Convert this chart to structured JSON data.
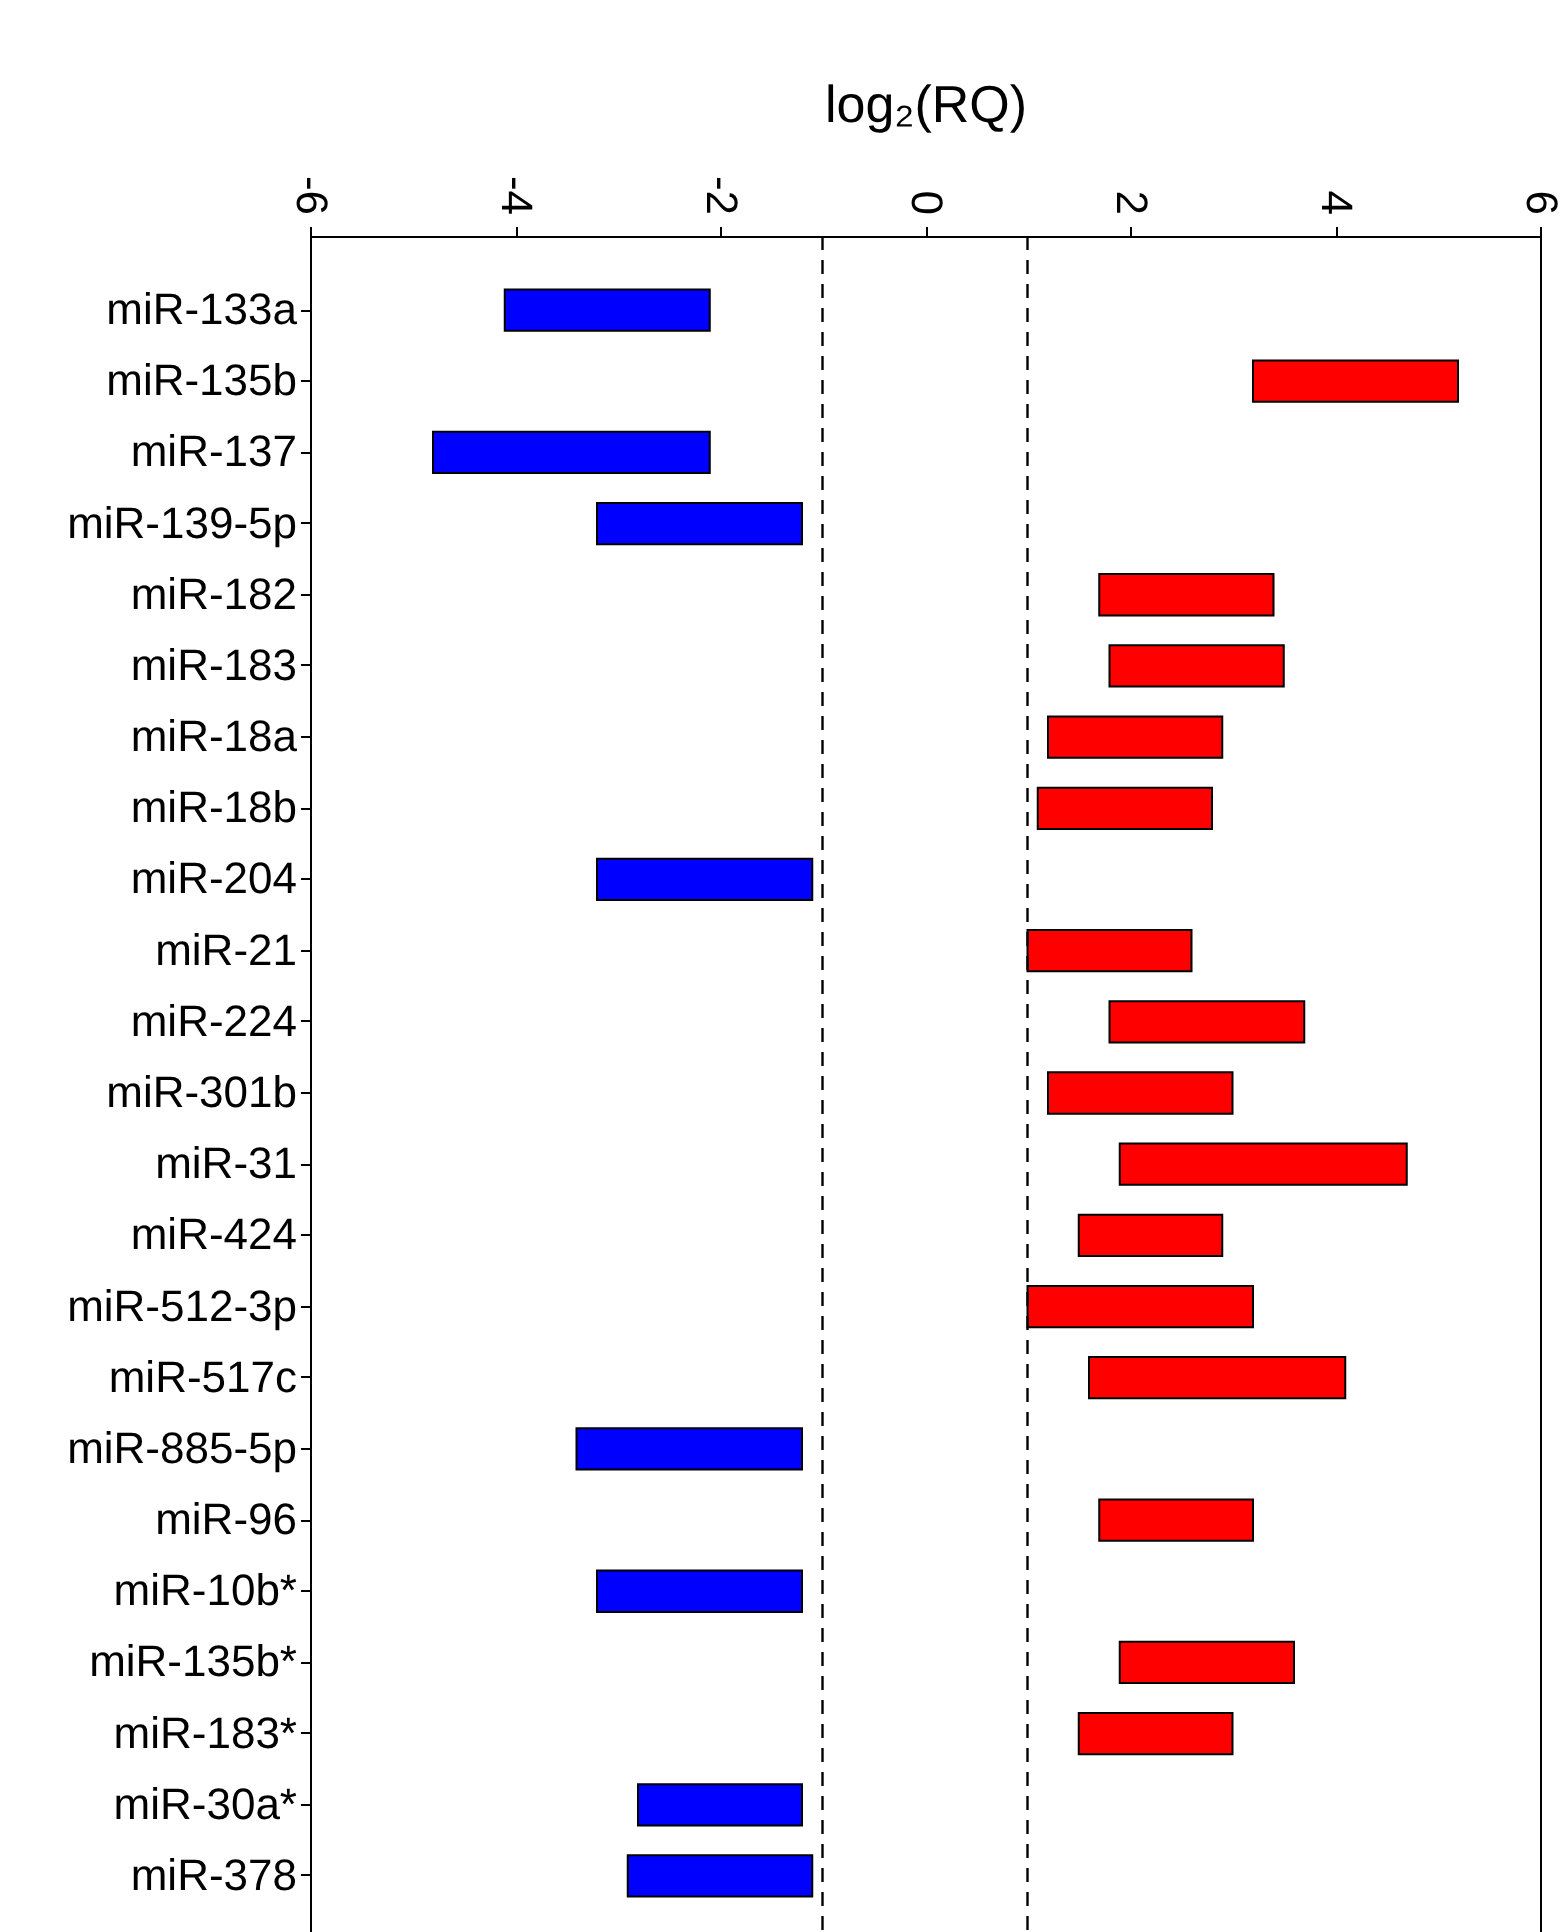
{
  "chart_data": {
    "type": "bar",
    "orientation": "horizontal",
    "xlabel": "log₂(RQ)",
    "categories": [
      "miR-133a",
      "miR-135b",
      "miR-137",
      "miR-139-5p",
      "miR-182",
      "miR-183",
      "miR-18a",
      "miR-18b",
      "miR-204",
      "miR-21",
      "miR-224",
      "miR-301b",
      "miR-31",
      "miR-424",
      "miR-512-3p",
      "miR-517c",
      "miR-885-5p",
      "miR-96",
      "miR-10b*",
      "miR-135b*",
      "miR-183*",
      "miR-30a*",
      "miR-378"
    ],
    "base": [
      -4.1,
      3.2,
      -4.8,
      -3.2,
      1.7,
      1.8,
      1.2,
      1.1,
      -3.2,
      1.0,
      1.8,
      1.2,
      1.9,
      1.5,
      1.0,
      1.6,
      -3.4,
      1.7,
      -3.2,
      1.9,
      1.5,
      -2.8,
      -2.9
    ],
    "values": [
      2.0,
      2.0,
      2.7,
      2.0,
      1.7,
      1.7,
      1.7,
      1.7,
      2.1,
      1.6,
      1.9,
      1.8,
      2.8,
      1.4,
      2.2,
      2.5,
      2.2,
      1.5,
      2.0,
      1.7,
      1.5,
      1.6,
      1.8
    ],
    "colors": [
      "#0000ff",
      "#ff0000",
      "#0000ff",
      "#0000ff",
      "#ff0000",
      "#ff0000",
      "#ff0000",
      "#ff0000",
      "#0000ff",
      "#ff0000",
      "#ff0000",
      "#ff0000",
      "#ff0000",
      "#ff0000",
      "#ff0000",
      "#ff0000",
      "#0000ff",
      "#ff0000",
      "#0000ff",
      "#ff0000",
      "#ff0000",
      "#0000ff",
      "#0000ff"
    ],
    "xlim": [
      -6,
      6
    ],
    "xticks": [
      -6,
      -4,
      -2,
      0,
      2,
      4,
      6
    ],
    "ref_lines": [
      {
        "axis": "x",
        "value": -1,
        "line_style": "dashed"
      },
      {
        "axis": "x",
        "value": 1,
        "line_style": "dashed"
      }
    ],
    "grid": false
  }
}
